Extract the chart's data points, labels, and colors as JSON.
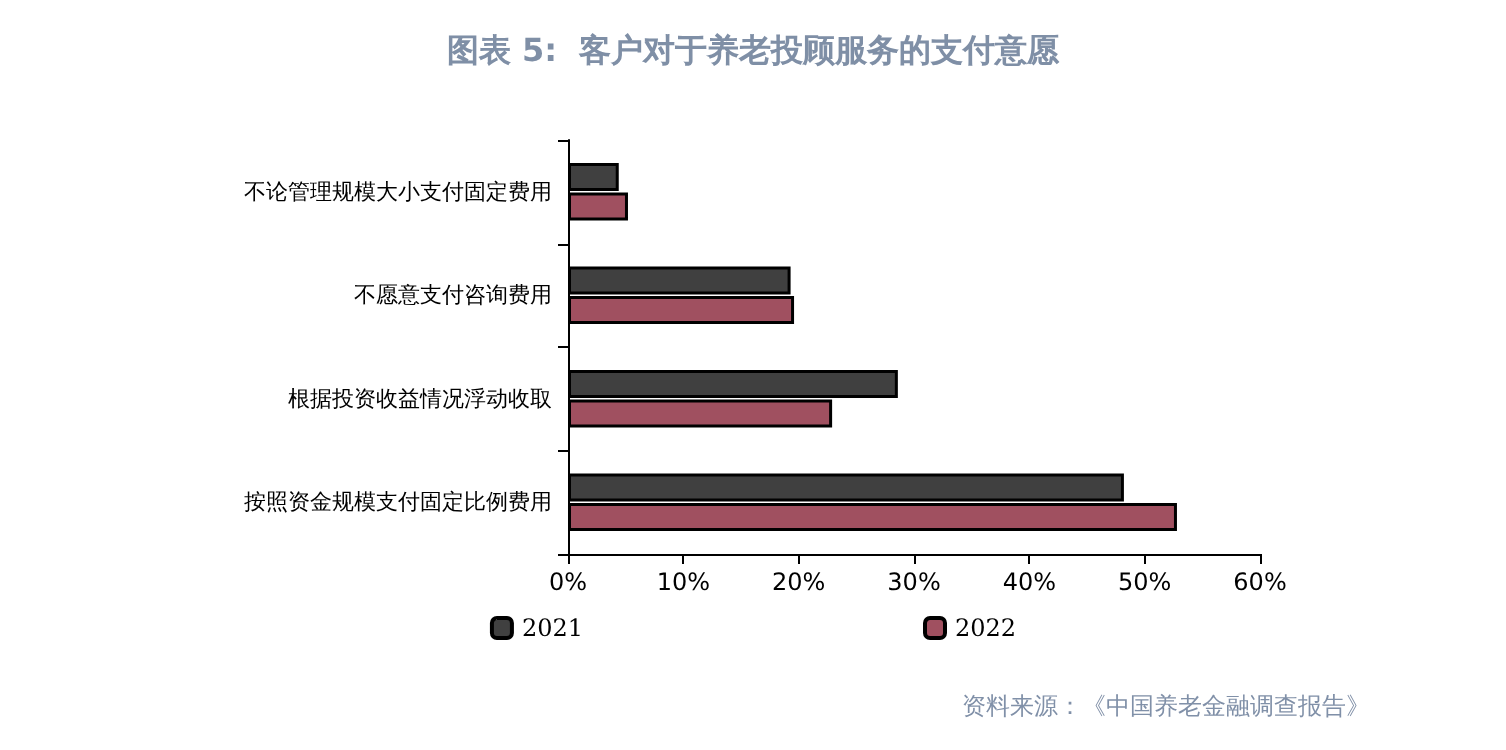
{
  "chart_data": {
    "type": "bar",
    "orientation": "horizontal",
    "title": "图表 5:  客户对于养老投顾服务的支付意愿",
    "categories": [
      "不论管理规模大小支付固定费用",
      "不愿意支付咨询费用",
      "根据投资收益情况浮动收取",
      "按照资金规模支付固定比例费用"
    ],
    "series": [
      {
        "name": "2021",
        "color": "#404040",
        "values": [
          4.4,
          19.3,
          28.6,
          48.2
        ]
      },
      {
        "name": "2022",
        "color": "#a05060",
        "values": [
          5.2,
          19.6,
          22.9,
          52.8
        ]
      }
    ],
    "xlim": [
      0,
      60
    ],
    "xticks": [
      {
        "value": 0,
        "label": "0%"
      },
      {
        "value": 10,
        "label": "10%"
      },
      {
        "value": 20,
        "label": "20%"
      },
      {
        "value": 30,
        "label": "30%"
      },
      {
        "value": 40,
        "label": "40%"
      },
      {
        "value": 50,
        "label": "50%"
      },
      {
        "value": 60,
        "label": "60%"
      }
    ],
    "legend": "bottom",
    "grid": false,
    "annotations": [
      "资料来源：《中国养老金融调查报告》"
    ]
  }
}
